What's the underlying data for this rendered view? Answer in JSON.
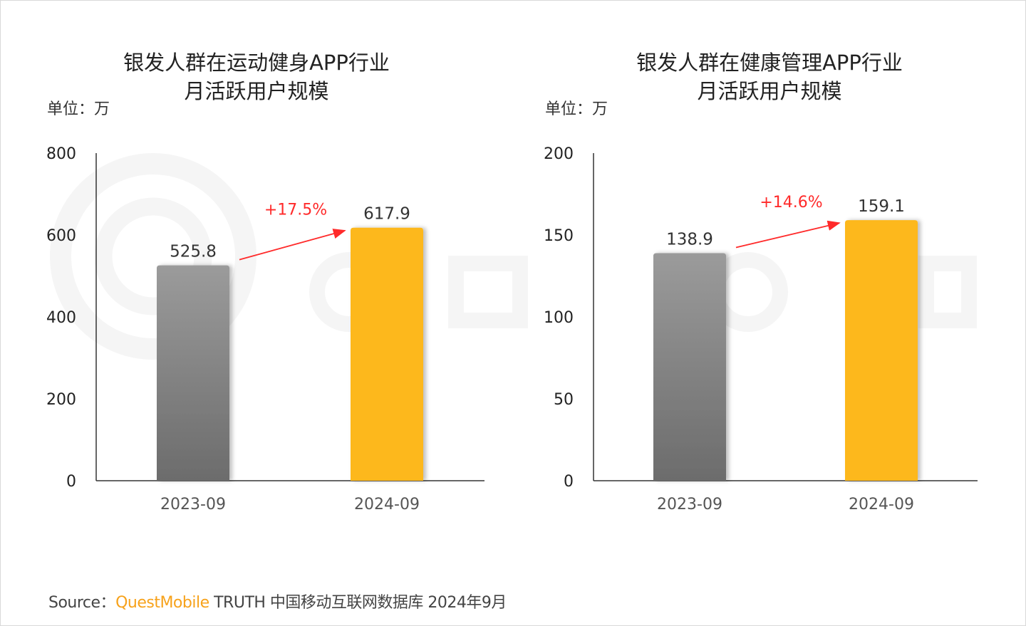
{
  "watermark": "QUEST MOBILE",
  "colors": {
    "gray_top": "#9b9b9b",
    "gray_bottom": "#6c6c6c",
    "yellow": "#fdb81b",
    "arrow": "#ff2a2a",
    "axis": "#333333"
  },
  "chart_data": [
    {
      "type": "bar",
      "title_lines": [
        "银发人群在运动健身APP行业",
        "月活跃用户规模"
      ],
      "unit": "单位：万",
      "categories": [
        "2023-09",
        "2024-09"
      ],
      "values": [
        525.8,
        617.9
      ],
      "value_labels": [
        "525.8",
        "617.9"
      ],
      "bar_colors": [
        "gray-gradient",
        "yellow"
      ],
      "ylim": [
        0,
        800
      ],
      "yticks": [
        "0",
        "200",
        "400",
        "600",
        "800"
      ],
      "growth_label": "+17.5%",
      "grid": false
    },
    {
      "type": "bar",
      "title_lines": [
        "银发人群在健康管理APP行业",
        "月活跃用户规模"
      ],
      "unit": "单位：万",
      "categories": [
        "2023-09",
        "2024-09"
      ],
      "values": [
        138.9,
        159.1
      ],
      "value_labels": [
        "138.9",
        "159.1"
      ],
      "bar_colors": [
        "gray-gradient",
        "yellow"
      ],
      "ylim": [
        0,
        200
      ],
      "yticks": [
        "0",
        "50",
        "100",
        "150",
        "200"
      ],
      "growth_label": "+14.6%",
      "grid": false
    }
  ],
  "source": {
    "prefix": "Source：",
    "brand": "QuestMobile",
    "text": " TRUTH 中国移动互联网数据库 2024年9月"
  }
}
